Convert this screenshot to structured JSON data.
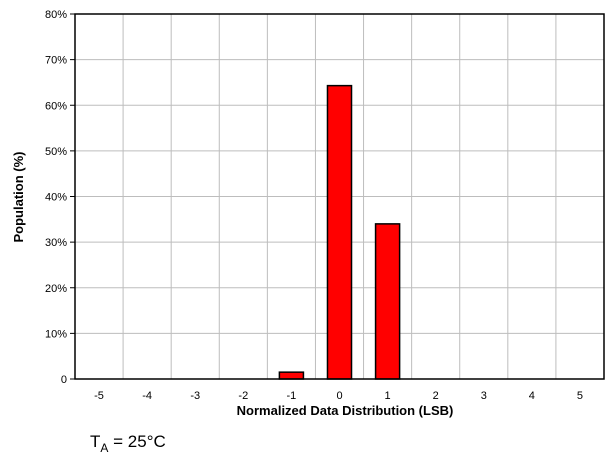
{
  "chart_data": {
    "type": "bar",
    "categories": [
      "-5",
      "-4",
      "-3",
      "-2",
      "-1",
      "0",
      "1",
      "2",
      "3",
      "4",
      "5"
    ],
    "values": [
      0,
      0,
      0,
      0,
      1.5,
      64.3,
      34.0,
      0,
      0,
      0,
      0
    ],
    "xlabel": "Normalized Data Distribution (LSB)",
    "ylabel": "Population (%)",
    "ylim": [
      0,
      80
    ],
    "yticks": [
      "0",
      "10%",
      "20%",
      "30%",
      "40%",
      "50%",
      "60%",
      "70%",
      "80%"
    ],
    "grid": true,
    "bar_color": "#ff0000",
    "bar_edge_color": "#000000"
  },
  "annotation": {
    "symbol": "T",
    "subscript": "A",
    "text": " = 25°C"
  }
}
